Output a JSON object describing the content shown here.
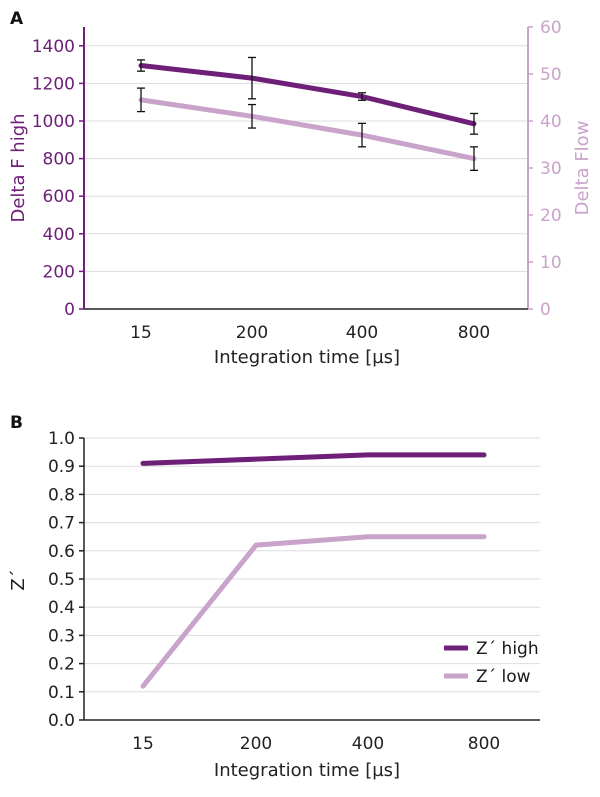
{
  "colors": {
    "high": "#6e1f78",
    "low": "#c9a3c9",
    "grid": "#dddddd",
    "axis": "#222222",
    "err": "#111111"
  },
  "chart_data": [
    {
      "panel_label": "A",
      "type": "line",
      "categories": [
        "15",
        "200",
        "400",
        "800"
      ],
      "xlabel": "Integration time [µs]",
      "ylabel": "Delta F high",
      "y2label": "Delta Flow",
      "ylim": [
        0,
        1500
      ],
      "y2lim": [
        0,
        60
      ],
      "yticks": [
        "0",
        "200",
        "400",
        "600",
        "800",
        "1000",
        "1200",
        "1400"
      ],
      "y2ticks": [
        "0",
        "10",
        "20",
        "30",
        "40",
        "50",
        "60"
      ],
      "grid": true,
      "series": [
        {
          "name": "Delta F high",
          "axis": "left",
          "values": [
            1295,
            1228,
            1130,
            985
          ],
          "err": [
            30,
            110,
            20,
            55
          ]
        },
        {
          "name": "Delta Flow",
          "axis": "right",
          "values": [
            44.5,
            41,
            37,
            32
          ],
          "err": [
            2.5,
            2.5,
            2.5,
            2.5
          ]
        }
      ]
    },
    {
      "panel_label": "B",
      "type": "line",
      "categories": [
        "15",
        "200",
        "400",
        "800"
      ],
      "xlabel": "Integration time [µs]",
      "ylabel": "Z´",
      "ylim": [
        0,
        1.0
      ],
      "yticks": [
        "0.0",
        "0.1",
        "0.2",
        "0.3",
        "0.4",
        "0.5",
        "0.6",
        "0.7",
        "0.8",
        "0.9",
        "1.0"
      ],
      "grid": true,
      "legend_position": "bottom-right",
      "series": [
        {
          "name": "Z´ high",
          "values": [
            0.91,
            0.925,
            0.94,
            0.94
          ]
        },
        {
          "name": "Z´ low",
          "values": [
            0.12,
            0.62,
            0.65,
            0.65
          ]
        }
      ]
    }
  ]
}
